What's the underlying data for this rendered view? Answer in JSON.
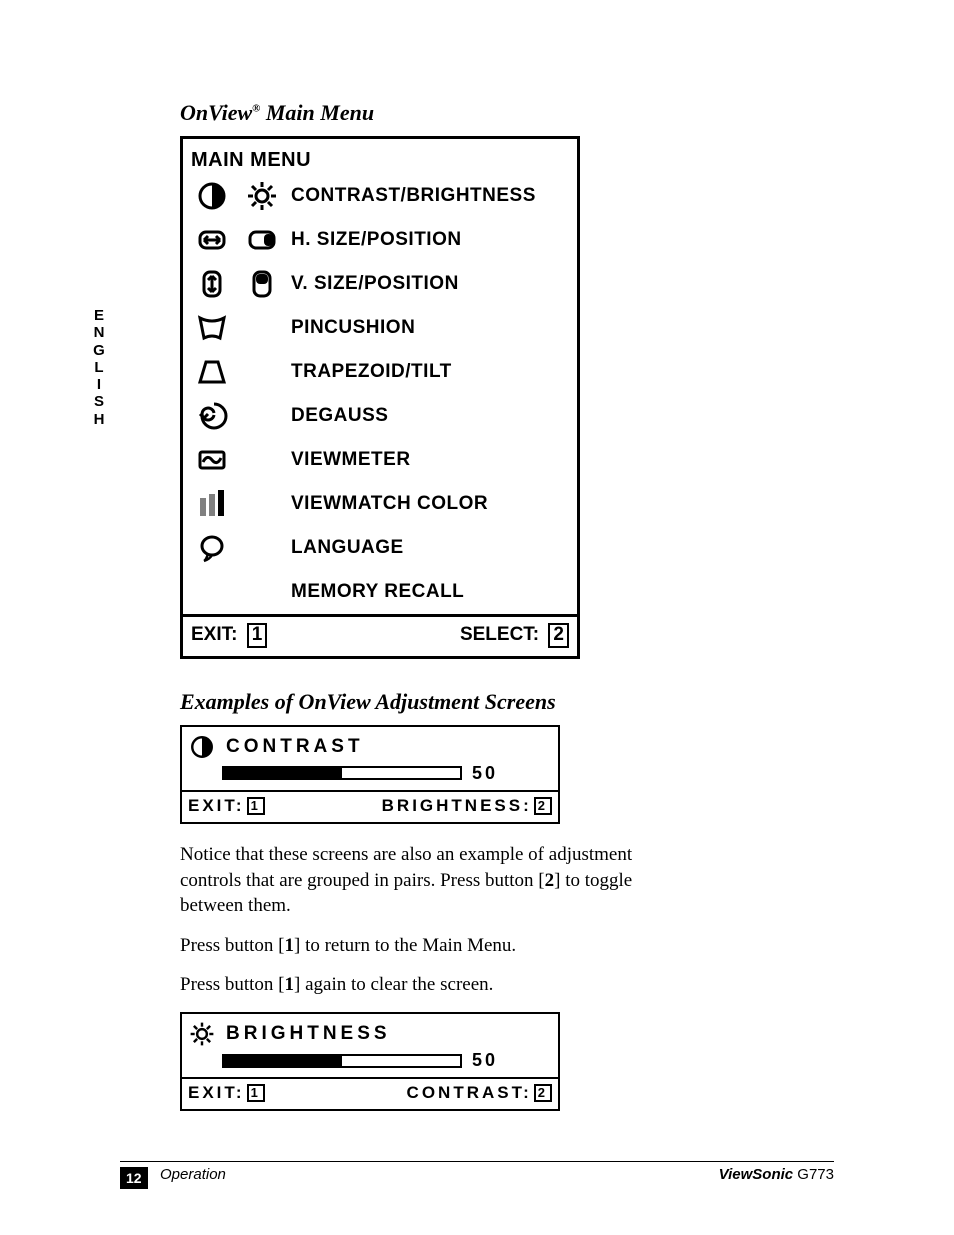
{
  "language_tab": "ENGLISH",
  "heading1_prefix": "OnView",
  "heading1_suffix": "  Main Menu",
  "heading1_reg": "®",
  "main_menu": {
    "title": "MAIN MENU",
    "rows": [
      {
        "label": "CONTRAST/BRIGHTNESS",
        "icon1": "contrast-icon",
        "icon2": "brightness-icon"
      },
      {
        "label": "H. SIZE/POSITION",
        "icon1": "hsize-icon",
        "icon2": "hpos-icon"
      },
      {
        "label": "V. SIZE/POSITION",
        "icon1": "vsize-icon",
        "icon2": "vpos-icon"
      },
      {
        "label": "PINCUSHION",
        "icon1": "pincushion-icon",
        "icon2": null
      },
      {
        "label": "TRAPEZOID/TILT",
        "icon1": "trapezoid-icon",
        "icon2": null
      },
      {
        "label": "DEGAUSS",
        "icon1": "degauss-icon",
        "icon2": null
      },
      {
        "label": "VIEWMETER",
        "icon1": "viewmeter-icon",
        "icon2": null
      },
      {
        "label": "VIEWMATCH  COLOR",
        "icon1": "rgb-icon",
        "icon2": null
      },
      {
        "label": "LANGUAGE",
        "icon1": "language-icon",
        "icon2": null
      },
      {
        "label": "MEMORY RECALL",
        "icon1": null,
        "icon2": null
      }
    ],
    "exit_label": "EXIT:",
    "exit_key": "1",
    "select_label": "SELECT:",
    "select_key": "2"
  },
  "heading2": "Examples of OnView Adjustment Screens",
  "adj1": {
    "icon": "contrast-icon",
    "title": "CONTRAST",
    "value": "50",
    "fill_pct": 50,
    "exit_label": "EXIT:",
    "exit_key": "1",
    "toggle_label": "BRIGHTNESS:",
    "toggle_key": "2"
  },
  "para1a": "Notice that these screens are also an example of adjustment controls that are grouped in pairs. Press button [",
  "para1b": "] to toggle between them.",
  "para1_key": "2",
  "para2a": "Press button [",
  "para2b": "]  to return to the Main Menu.",
  "para2_key": "1",
  "para3a": "Press button [",
  "para3b": "] again to clear the screen.",
  "para3_key": "1",
  "adj2": {
    "icon": "brightness-icon",
    "title": "BRIGHTNESS",
    "value": "50",
    "fill_pct": 50,
    "exit_label": "EXIT:",
    "exit_key": "1",
    "toggle_label": "CONTRAST:",
    "toggle_key": "2"
  },
  "footer": {
    "page_num": "12",
    "section": "Operation",
    "brand": "ViewSonic",
    "model": " G773"
  },
  "colors": {
    "text": "#000000",
    "rgb_bar1": "#808080",
    "rgb_bar2": "#808080",
    "rgb_bar3": "#000000"
  }
}
